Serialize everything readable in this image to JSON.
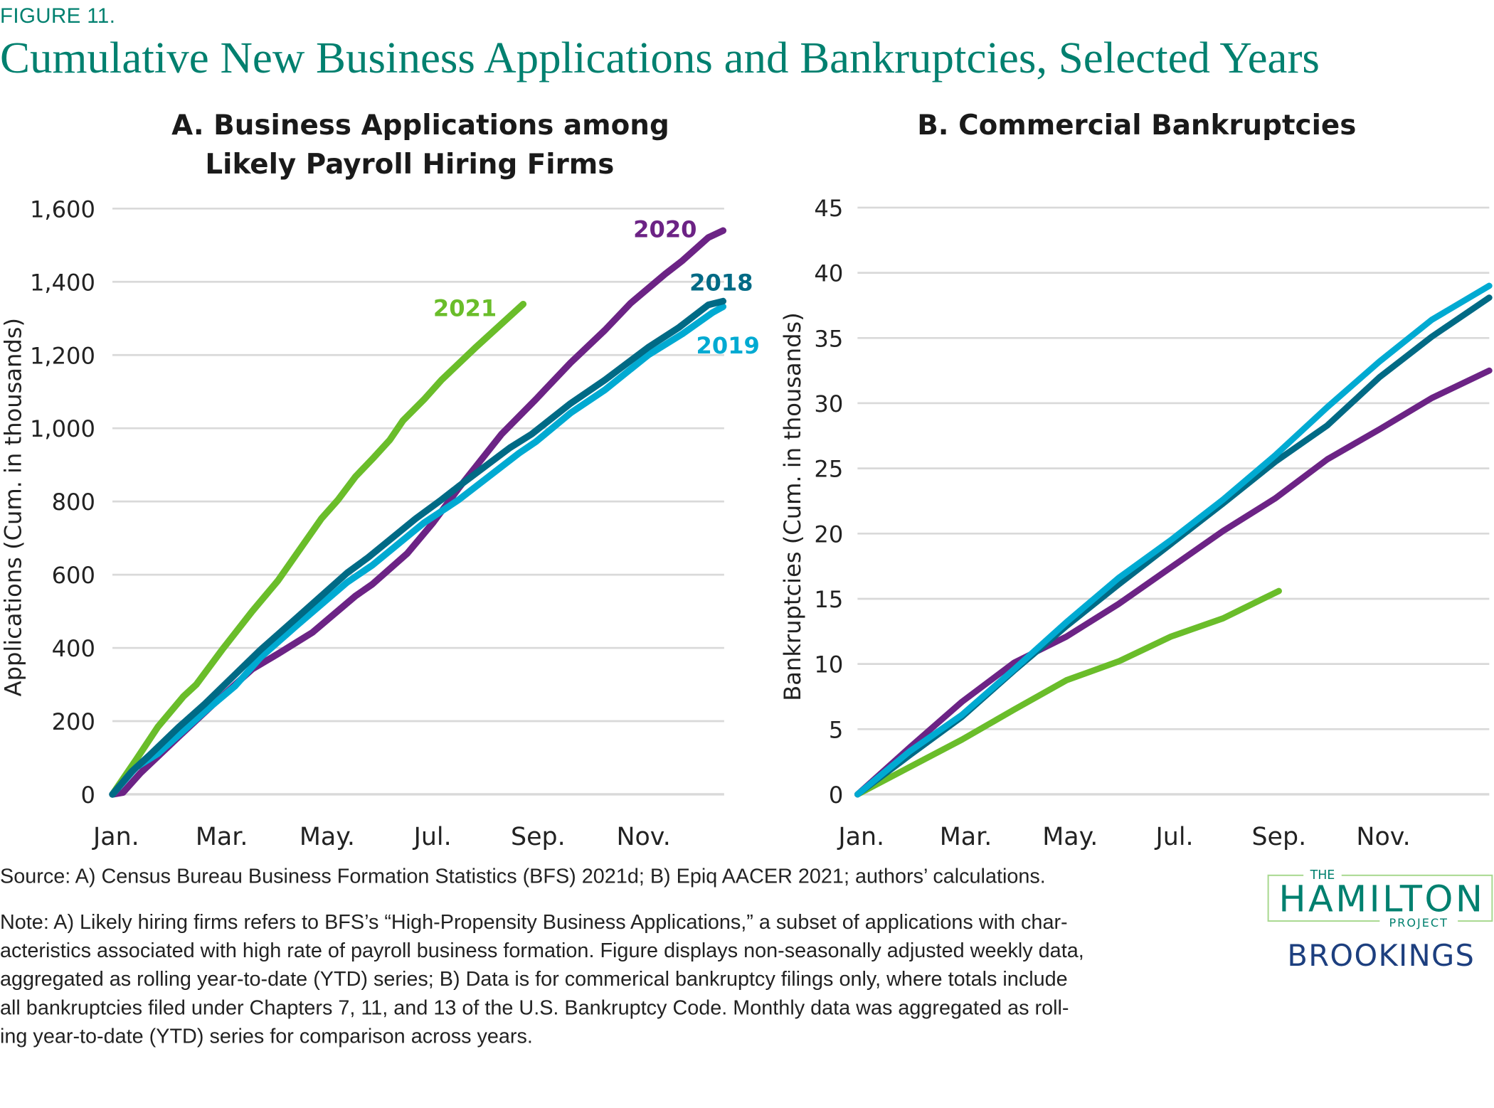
{
  "figure_label": "FIGURE 11.",
  "title": "Cumulative New Business Applications and Bankruptcies, Selected Years",
  "colors": {
    "title": "#00806F",
    "y2018": "#006A85",
    "y2019": "#00AAD2",
    "y2020": "#6C2385",
    "y2021": "#6ABD2A",
    "grid": "#D9D9D9",
    "brookings": "#1D3F7F",
    "hamilton_border": "#A8D88F"
  },
  "chart_data": [
    {
      "type": "line",
      "title_lines": [
        "A. Business Applications among",
        "Likely Payroll Hiring Firms"
      ],
      "ylabel": "Applications (Cum. in thousands)",
      "xlabel": "",
      "ylim": [
        0,
        1600
      ],
      "yticks": [
        0,
        200,
        400,
        600,
        800,
        1000,
        1200,
        1400,
        1600
      ],
      "ytick_labels": [
        "0",
        "200",
        "400",
        "600",
        "800",
        "1,000",
        "1,200",
        "1,400",
        "1,600"
      ],
      "xlim": [
        1,
        12.6
      ],
      "xticks": [
        1,
        3,
        5,
        7,
        9,
        11
      ],
      "xtick_labels": [
        "Jan.",
        "Mar.",
        "May.",
        "Jul.",
        "Sep.",
        "Nov."
      ],
      "grid": true,
      "series": [
        {
          "name": "2018",
          "color_key": "y2018",
          "x": [
            1,
            1.37,
            1.69,
            2.26,
            2.75,
            3.81,
            4.47,
            5.45,
            5.85,
            6.75,
            7.24,
            7.57,
            8.54,
            8.95,
            9.69,
            10.34,
            11.16,
            11.73,
            12.3,
            12.58
          ],
          "y": [
            0,
            63,
            105,
            184,
            247,
            395,
            479,
            605,
            647,
            753,
            805,
            842,
            947,
            984,
            1068,
            1132,
            1221,
            1274,
            1337,
            1347
          ]
        },
        {
          "name": "2019",
          "color_key": "y2019",
          "x": [
            1,
            1.45,
            1.86,
            2.35,
            2.75,
            3.32,
            3.81,
            4.47,
            5.45,
            5.93,
            6.91,
            7.57,
            8.71,
            9.03,
            9.69,
            10.34,
            11.16,
            11.81,
            12.38,
            12.58
          ],
          "y": [
            0,
            74,
            111,
            174,
            226,
            295,
            374,
            458,
            579,
            626,
            742,
            805,
            932,
            963,
            1042,
            1105,
            1200,
            1258,
            1316,
            1332
          ]
        },
        {
          "name": "2020",
          "color_key": "y2020",
          "x": [
            1,
            1.2,
            1.53,
            2.26,
            2.92,
            3.65,
            4.14,
            4.79,
            5.61,
            5.93,
            6.59,
            7.08,
            7.57,
            8.38,
            9.03,
            9.2,
            9.69,
            10.34,
            10.83,
            11.48,
            11.81,
            12.3,
            12.58
          ],
          "y": [
            0,
            5,
            58,
            158,
            247,
            342,
            384,
            442,
            542,
            574,
            658,
            742,
            837,
            984,
            1079,
            1105,
            1179,
            1268,
            1342,
            1421,
            1458,
            1521,
            1540
          ]
        },
        {
          "name": "2021",
          "color_key": "y2021",
          "x": [
            1,
            1.45,
            1.86,
            2.35,
            2.59,
            3.08,
            3.65,
            4.14,
            4.96,
            5.28,
            5.61,
            5.93,
            6.26,
            6.51,
            6.91,
            7.24,
            7.89,
            8.79
          ],
          "y": [
            0,
            95,
            184,
            268,
            300,
            395,
            500,
            584,
            753,
            805,
            868,
            916,
            968,
            1021,
            1079,
            1132,
            1221,
            1339
          ]
        }
      ]
    },
    {
      "type": "line",
      "title_lines": [
        "B. Commercial Bankruptcies"
      ],
      "ylabel": "Bankruptcies (Cum. in thousands)",
      "xlabel": "",
      "ylim": [
        0,
        45
      ],
      "yticks": [
        0,
        5,
        10,
        15,
        20,
        25,
        30,
        35,
        40,
        45
      ],
      "ytick_labels": [
        "0",
        "5",
        "10",
        "15",
        "20",
        "25",
        "30",
        "35",
        "40",
        "45"
      ],
      "xlim": [
        1,
        13.1
      ],
      "xticks": [
        1,
        3,
        5,
        7,
        9,
        11
      ],
      "xtick_labels": [
        "Jan.",
        "Mar.",
        "May.",
        "Jul.",
        "Sep.",
        "Nov."
      ],
      "grid": true,
      "series": [
        {
          "name": "2018",
          "color_key": "y2018",
          "x": [
            1,
            2,
            3,
            4,
            5,
            6,
            7,
            8,
            9,
            10,
            11,
            12,
            13.1
          ],
          "y": [
            0,
            3.0,
            5.95,
            9.5,
            12.9,
            16.1,
            19.2,
            22.3,
            25.5,
            28.3,
            32.0,
            35.1,
            38.1
          ]
        },
        {
          "name": "2019",
          "color_key": "y2019",
          "x": [
            1,
            2,
            3,
            4,
            5,
            6,
            7,
            8,
            9,
            10,
            11,
            12,
            13.1
          ],
          "y": [
            0,
            3.3,
            6.1,
            9.6,
            13.2,
            16.6,
            19.5,
            22.6,
            26.0,
            29.7,
            33.2,
            36.4,
            39.0
          ]
        },
        {
          "name": "2020",
          "color_key": "y2020",
          "x": [
            1,
            2,
            3,
            4,
            5,
            6,
            7,
            8,
            9,
            10,
            11,
            12,
            13.1
          ],
          "y": [
            0,
            3.6,
            7.1,
            10.1,
            12.1,
            14.6,
            17.4,
            20.2,
            22.7,
            25.7,
            28.0,
            30.4,
            32.5
          ]
        },
        {
          "name": "2021",
          "color_key": "y2021",
          "x": [
            1,
            2,
            3,
            4,
            5,
            6,
            7,
            8,
            9.07
          ],
          "y": [
            0,
            2.1,
            4.2,
            6.5,
            8.75,
            10.2,
            12.1,
            13.5,
            15.6
          ]
        }
      ]
    }
  ],
  "series_labels": [
    "2020",
    "2018",
    "2019",
    "2021"
  ],
  "source": "Source: A) Census Bureau Business Formation Statistics (BFS) 2021d; B) Epiq AACER 2021; authors’ calculations.",
  "note_lines": [
    "Note: A) Likely hiring firms refers to BFS’s “High-Propensity Business Applications,” a subset of applications with char-",
    "acteristics associated with high rate of payroll business formation. Figure displays non-seasonally adjusted weekly data,",
    "aggregated as rolling year-to-date (YTD) series; B) Data is for commerical bankruptcy filings only, where totals include",
    "all bankruptcies filed under Chapters 7, 11, and 13 of the U.S. Bankruptcy Code. Monthly data was aggregated as roll-",
    "ing year-to-date (YTD) series for comparison across years."
  ],
  "logo": {
    "the": "THE",
    "hamilton": "HAMILTON",
    "project": "PROJECT",
    "brookings": "BROOKINGS"
  }
}
